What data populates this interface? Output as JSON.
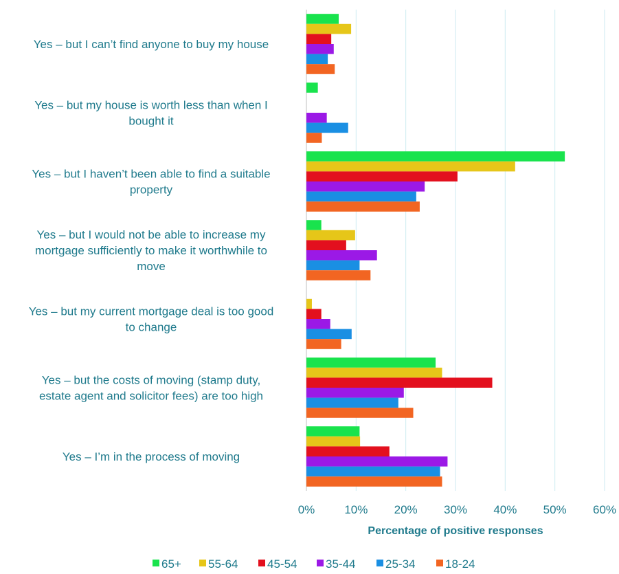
{
  "chart_data": {
    "type": "bar",
    "orientation": "horizontal",
    "categories": [
      [
        "Yes – but I can’t find anyone to buy my house"
      ],
      [
        "Yes – but my house is worth less than when I",
        "bought it"
      ],
      [
        "Yes – but I haven’t been able to find a suitable",
        "property"
      ],
      [
        "Yes – but I would not be able to increase my",
        "mortgage sufficiently to make it worthwhile to",
        "move"
      ],
      [
        "Yes – but my current mortgage deal is too good",
        "to change"
      ],
      [
        "Yes – but the costs of moving (stamp duty,",
        "estate agent and solicitor fees) are too high"
      ],
      [
        "Yes – I’m in the process of moving"
      ]
    ],
    "series": [
      {
        "name": "65+",
        "color": "#19e34d",
        "values": [
          6.5,
          2.3,
          52,
          3,
          0,
          26,
          10.7
        ]
      },
      {
        "name": "55-64",
        "color": "#e6c619",
        "values": [
          9,
          0,
          42,
          9.8,
          1.1,
          27.3,
          10.8
        ]
      },
      {
        "name": "45-54",
        "color": "#e3101e",
        "values": [
          5,
          0,
          30.4,
          8,
          3,
          37.4,
          16.7
        ]
      },
      {
        "name": "35-44",
        "color": "#9b19e6",
        "values": [
          5.5,
          4.1,
          23.8,
          14.2,
          4.8,
          19.6,
          28.4
        ]
      },
      {
        "name": "25-34",
        "color": "#1a8fe3",
        "values": [
          4.3,
          8.4,
          22.1,
          10.7,
          9.1,
          18.5,
          26.9
        ]
      },
      {
        "name": "18-24",
        "color": "#f26522",
        "values": [
          5.7,
          3.1,
          22.8,
          12.9,
          7,
          21.5,
          27.3
        ]
      }
    ],
    "x_ticks": [
      "0%",
      "10%",
      "20%",
      "30%",
      "40%",
      "50%",
      "60%"
    ],
    "xlim": [
      0,
      60
    ],
    "xlabel": "Percentage of positive responses",
    "ylabel": "",
    "title": "",
    "grid": true,
    "legend": "bottom"
  }
}
